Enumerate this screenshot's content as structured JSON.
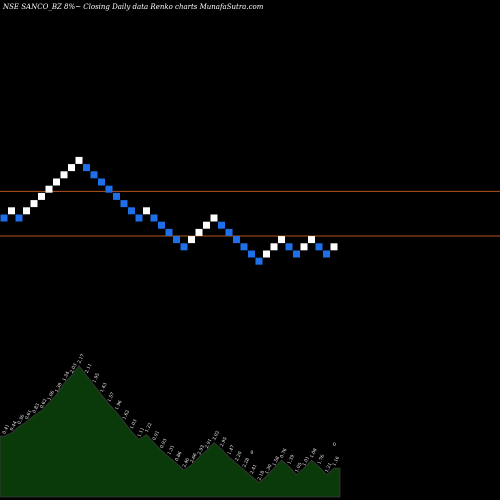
{
  "header": {
    "text": "NSE SANCO_BZ 8%~  Closing Daily data  Renko  charts MunafaSutra.com"
  },
  "colors": {
    "background": "#000000",
    "up_brick": "#ffffff",
    "down_brick": "#1e6fe8",
    "resistance_line": "#b5541c",
    "volume_fill": "#0a3a0a",
    "volume_stroke": "#3a3a3a",
    "label_text": "#ffffff"
  },
  "chart_data": [
    {
      "type": "renko",
      "brick_pct": 8,
      "bricks": [
        {
          "dir": "down",
          "level": 0
        },
        {
          "dir": "up",
          "level": 1
        },
        {
          "dir": "down",
          "level": 0
        },
        {
          "dir": "up",
          "level": 1
        },
        {
          "dir": "up",
          "level": 2
        },
        {
          "dir": "up",
          "level": 3
        },
        {
          "dir": "up",
          "level": 4
        },
        {
          "dir": "up",
          "level": 5
        },
        {
          "dir": "up",
          "level": 6
        },
        {
          "dir": "up",
          "level": 7
        },
        {
          "dir": "up",
          "level": 8
        },
        {
          "dir": "down",
          "level": 7
        },
        {
          "dir": "down",
          "level": 6
        },
        {
          "dir": "down",
          "level": 5
        },
        {
          "dir": "down",
          "level": 4
        },
        {
          "dir": "down",
          "level": 3
        },
        {
          "dir": "down",
          "level": 2
        },
        {
          "dir": "down",
          "level": 1
        },
        {
          "dir": "down",
          "level": 0
        },
        {
          "dir": "up",
          "level": 1
        },
        {
          "dir": "down",
          "level": 0
        },
        {
          "dir": "down",
          "level": -1
        },
        {
          "dir": "down",
          "level": -2
        },
        {
          "dir": "down",
          "level": -3
        },
        {
          "dir": "down",
          "level": -4
        },
        {
          "dir": "up",
          "level": -3
        },
        {
          "dir": "up",
          "level": -2
        },
        {
          "dir": "up",
          "level": -1
        },
        {
          "dir": "up",
          "level": 0
        },
        {
          "dir": "down",
          "level": -1
        },
        {
          "dir": "down",
          "level": -2
        },
        {
          "dir": "down",
          "level": -3
        },
        {
          "dir": "down",
          "level": -4
        },
        {
          "dir": "down",
          "level": -5
        },
        {
          "dir": "down",
          "level": -6
        },
        {
          "dir": "up",
          "level": -5
        },
        {
          "dir": "up",
          "level": -4
        },
        {
          "dir": "up",
          "level": -3
        },
        {
          "dir": "down",
          "level": -4
        },
        {
          "dir": "down",
          "level": -5
        },
        {
          "dir": "up",
          "level": -4
        },
        {
          "dir": "up",
          "level": -3
        },
        {
          "dir": "down",
          "level": -4
        },
        {
          "dir": "down",
          "level": -5
        },
        {
          "dir": "up",
          "level": -4
        }
      ],
      "horizontal_lines_level": [
        3.7,
        -2.5
      ]
    },
    {
      "type": "area",
      "series": [
        {
          "values": [
            3.8,
            4.0,
            4.4,
            4.7,
            5.1,
            5.4,
            5.9,
            6.4,
            7.1,
            7.6,
            8.2,
            7.6,
            7.0,
            6.4,
            5.8,
            5.3,
            4.7,
            4.1,
            3.6,
            3.9,
            3.4,
            2.9,
            2.5,
            2.1,
            1.7,
            2.0,
            2.5,
            2.9,
            3.4,
            3.0,
            2.5,
            2.1,
            1.7,
            1.3,
            0.9,
            1.3,
            1.8,
            2.3,
            1.9,
            1.4,
            1.8,
            2.3,
            1.9,
            1.4,
            1.8
          ],
          "labels": [
            "0.41",
            "0.44",
            "0.36",
            "0.61",
            "0.83",
            "0.62",
            "1.06",
            "1.38",
            "1.34",
            "2.03",
            "2.17",
            "2.11",
            "1.95",
            "1.43",
            "1.57",
            "1.96",
            "1.62",
            "1.03",
            "1.11",
            "1.22",
            "0.91",
            "0.93",
            "1.31",
            "0.86",
            "2.46",
            "2.66",
            "2.93",
            "2.91",
            "3.02",
            "2.95",
            "1.47",
            "2.20",
            "2.28",
            "2.41",
            "2.18",
            "1.30",
            "1.58",
            "0.76",
            "1.39",
            "1.05",
            "1.01",
            "1.08",
            "1.76",
            "1.21",
            "1.16"
          ]
        }
      ],
      "markers": [
        "0",
        "0"
      ]
    }
  ]
}
